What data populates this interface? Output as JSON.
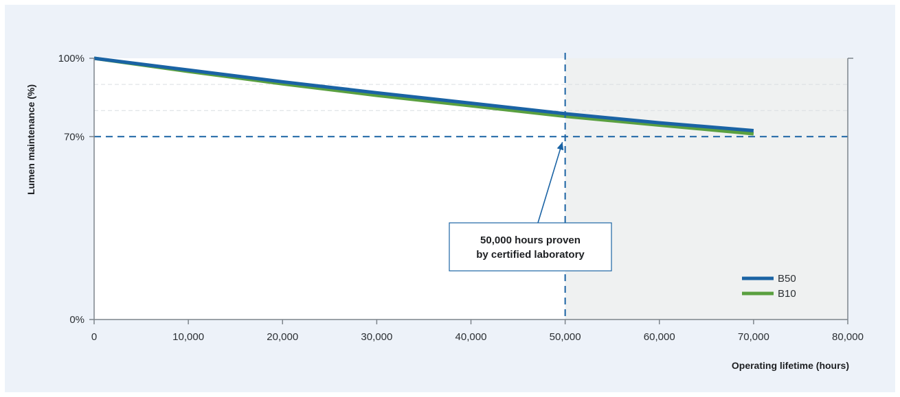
{
  "chart_data": {
    "type": "line",
    "xlabel": "Operating lifetime (hours)",
    "ylabel": "Lumen maintenance (%)",
    "xlim": [
      0,
      80000
    ],
    "ylim": [
      0,
      100
    ],
    "x_ticks": [
      {
        "value": 0,
        "label": "0"
      },
      {
        "value": 10000,
        "label": "10,000"
      },
      {
        "value": 20000,
        "label": "20,000"
      },
      {
        "value": 30000,
        "label": "30,000"
      },
      {
        "value": 40000,
        "label": "40,000"
      },
      {
        "value": 50000,
        "label": "50,000"
      },
      {
        "value": 60000,
        "label": "60,000"
      },
      {
        "value": 70000,
        "label": "70,000"
      },
      {
        "value": 80000,
        "label": "80,000"
      }
    ],
    "y_ticks": [
      {
        "value": 0,
        "label": "0%"
      },
      {
        "value": 70,
        "label": "70%"
      },
      {
        "value": 100,
        "label": "100%"
      }
    ],
    "y_gridlines": [
      80,
      90
    ],
    "series": [
      {
        "name": "B50",
        "color": "#1a63a4",
        "x": [
          0,
          10000,
          20000,
          30000,
          40000,
          50000,
          60000,
          70000
        ],
        "y": [
          100,
          95.5,
          91,
          86.8,
          82.8,
          78.8,
          75.3,
          72.3
        ]
      },
      {
        "name": "B10",
        "color": "#5aa040",
        "x": [
          0,
          10000,
          20000,
          30000,
          40000,
          50000,
          60000,
          70000
        ],
        "y": [
          100,
          95.0,
          90.2,
          85.8,
          81.8,
          77.8,
          74.4,
          71.1
        ]
      }
    ],
    "reference_lines": {
      "x": 50000,
      "y": 70,
      "color": "#1a63a4"
    },
    "shaded_region": {
      "x_from": 50000,
      "x_to": 80000,
      "color": "#eff1f1"
    },
    "annotation": {
      "lines": [
        "50,000 hours proven",
        "by certified laboratory"
      ],
      "points_to": {
        "x": 50000,
        "y": 70
      }
    },
    "legend": {
      "position": "bottom-right",
      "entries": [
        {
          "label": "B50",
          "color": "#1a63a4"
        },
        {
          "label": "B10",
          "color": "#5aa040"
        }
      ]
    },
    "background_color": "#edf2f9"
  }
}
